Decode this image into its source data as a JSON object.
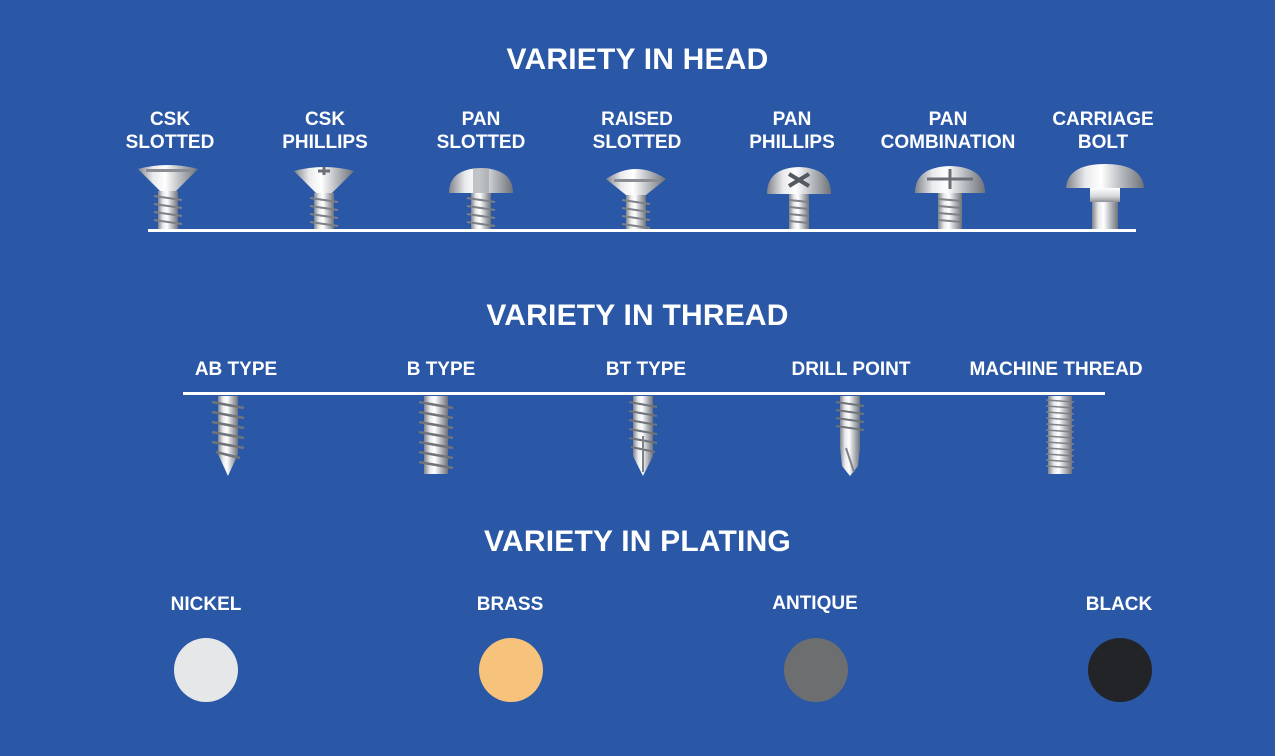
{
  "head": {
    "title": "VARIETY IN HEAD",
    "items": [
      {
        "line1": "CSK",
        "line2": "SLOTTED",
        "icon": "csk-slotted-screw-icon"
      },
      {
        "line1": "CSK",
        "line2": "PHILLIPS",
        "icon": "csk-phillips-screw-icon"
      },
      {
        "line1": "PAN",
        "line2": "SLOTTED",
        "icon": "pan-slotted-screw-icon"
      },
      {
        "line1": "RAISED",
        "line2": "SLOTTED",
        "icon": "raised-slotted-screw-icon"
      },
      {
        "line1": "PAN",
        "line2": "PHILLIPS",
        "icon": "pan-phillips-screw-icon"
      },
      {
        "line1": "PAN",
        "line2": "COMBINATION",
        "icon": "pan-combination-screw-icon"
      },
      {
        "line1": "CARRIAGE",
        "line2": "BOLT",
        "icon": "carriage-bolt-icon"
      }
    ]
  },
  "thread": {
    "title": "VARIETY IN THREAD",
    "items": [
      {
        "label": "AB TYPE",
        "icon": "ab-type-thread-icon"
      },
      {
        "label": "B TYPE",
        "icon": "b-type-thread-icon"
      },
      {
        "label": "BT TYPE",
        "icon": "bt-type-thread-icon"
      },
      {
        "label": "DRILL POINT",
        "icon": "drill-point-thread-icon"
      },
      {
        "label": "MACHINE THREAD",
        "icon": "machine-thread-icon"
      }
    ]
  },
  "plating": {
    "title": "VARIETY IN PLATING",
    "items": [
      {
        "label": "NICKEL",
        "color": "#e6e7e8"
      },
      {
        "label": "BRASS",
        "color": "#f7c27b"
      },
      {
        "label": "ANTIQUE",
        "color": "#6d6e70"
      },
      {
        "label": "BLACK",
        "color": "#232427"
      }
    ]
  },
  "colors": {
    "background": "#2a57a6",
    "text": "#ffffff",
    "metal_light": "#f2f3f4",
    "metal_dark": "#8a8d92"
  }
}
